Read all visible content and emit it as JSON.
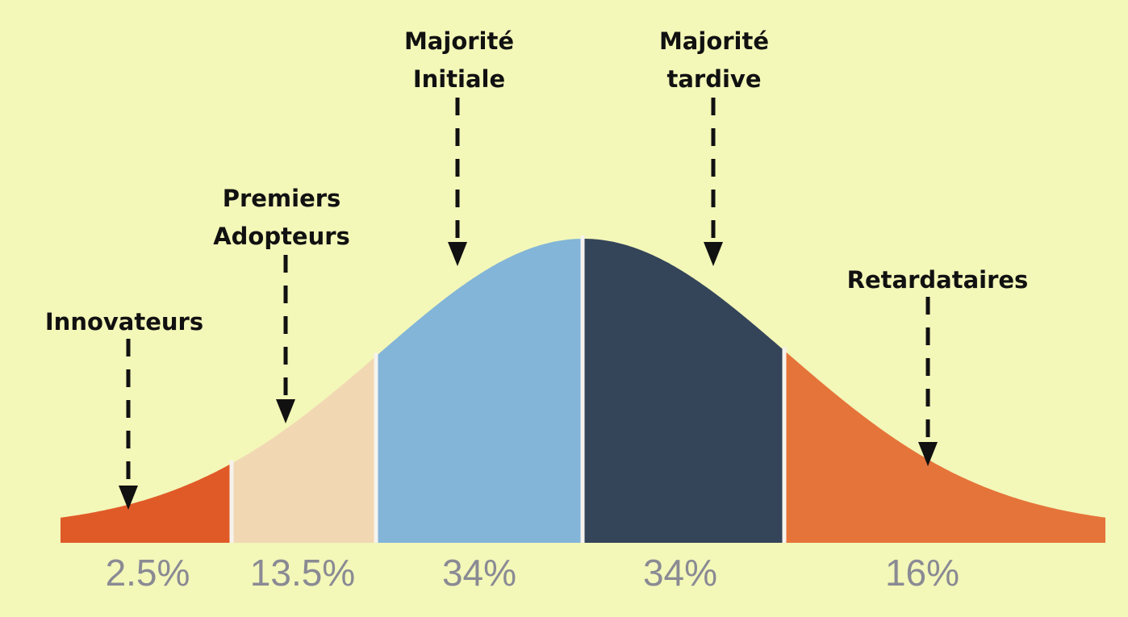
{
  "segments": [
    {
      "label": [
        "Innovateurs"
      ],
      "percent": "2.5%",
      "color": "#e05a28"
    },
    {
      "label": [
        "Premiers",
        "Adopteurs"
      ],
      "percent": "13.5%",
      "color": "#f1d8b3"
    },
    {
      "label": [
        "Majorité",
        "Initiale"
      ],
      "percent": "34%",
      "color": "#82b5d8"
    },
    {
      "label": [
        "Majorité",
        "tardive"
      ],
      "percent": "34%",
      "color": "#344459"
    },
    {
      "label": [
        "Retardataires"
      ],
      "percent": "16%",
      "color": "#e5743a"
    }
  ]
}
